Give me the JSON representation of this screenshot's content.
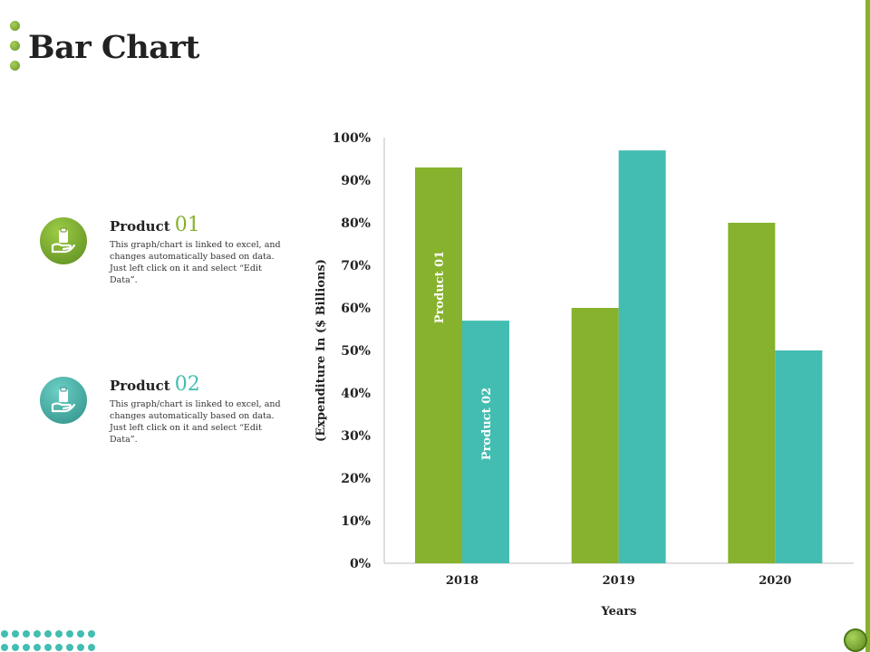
{
  "page": {
    "title": "Bar Chart"
  },
  "legend": [
    {
      "name": "Product",
      "number": "01",
      "color": "#86b22d",
      "description": "This graph/chart is linked to excel, and changes automatically based on data. Just left click on it and select “Edit Data”."
    },
    {
      "name": "Product",
      "number": "02",
      "color": "#43bdb1",
      "description": "This graph/chart is linked to excel, and changes automatically based on data. Just left click on it and select “Edit Data”."
    }
  ],
  "chart_data": {
    "type": "bar",
    "title": "",
    "categories": [
      "2018",
      "2019",
      "2020"
    ],
    "series": [
      {
        "name": "Product 01",
        "color": "#86b22d",
        "values": [
          93,
          60,
          80
        ]
      },
      {
        "name": "Product 02",
        "color": "#43bdb1",
        "values": [
          57,
          97,
          50
        ]
      }
    ],
    "xlabel": "Years",
    "ylabel": "(Expenditure In ($ Billions)",
    "ylim": [
      0,
      100
    ],
    "yticks": [
      "0%",
      "10%",
      "20%",
      "30%",
      "40%",
      "50%",
      "60%",
      "70%",
      "80%",
      "90%",
      "100%"
    ],
    "grid": false,
    "legend": "in-bar labels"
  }
}
